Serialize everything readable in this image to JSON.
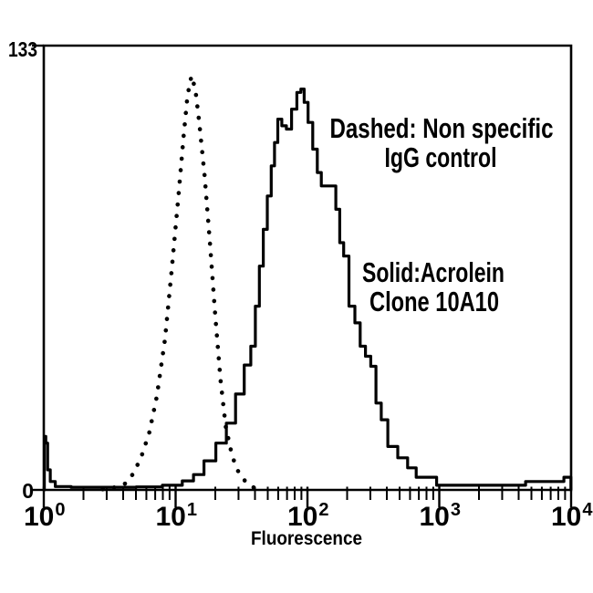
{
  "figure": {
    "background": "#ffffff",
    "ink_color": "#000000"
  },
  "chart_data": {
    "type": "line",
    "subtype": "flow-cytometry-histogram-overlay",
    "title": "",
    "xlabel": "Fluorescence",
    "ylabel": "",
    "x_scale": "log10",
    "xlim": [
      1,
      10000
    ],
    "ylim": [
      0,
      133
    ],
    "grid": false,
    "legend_position": "none",
    "y_tick_labels": [
      "0",
      "133"
    ],
    "x_tick_values": [
      1,
      10,
      100,
      1000,
      10000
    ],
    "x_ticks": [
      {
        "base": "10",
        "exp": "0"
      },
      {
        "base": "10",
        "exp": "1"
      },
      {
        "base": "10",
        "exp": "2"
      },
      {
        "base": "10",
        "exp": "3"
      },
      {
        "base": "10",
        "exp": "4"
      }
    ],
    "series": [
      {
        "name": "Non specific IgG control",
        "line_style": "dotted",
        "color": "#000000",
        "peak": {
          "x": 13.2,
          "y": 124
        },
        "points": [
          [
            2.8,
            0.2
          ],
          [
            3.5,
            0.8
          ],
          [
            4.2,
            2
          ],
          [
            4.8,
            5
          ],
          [
            5.5,
            10
          ],
          [
            6.3,
            17
          ],
          [
            7.2,
            28
          ],
          [
            8.3,
            45
          ],
          [
            9.3,
            65
          ],
          [
            10.5,
            88
          ],
          [
            11.5,
            106
          ],
          [
            12.3,
            118
          ],
          [
            13.2,
            124
          ],
          [
            14.1,
            120
          ],
          [
            15.1,
            110
          ],
          [
            16.6,
            94
          ],
          [
            18.2,
            74
          ],
          [
            20,
            52
          ],
          [
            21.9,
            33
          ],
          [
            24,
            19
          ],
          [
            26.9,
            10
          ],
          [
            30.2,
            5
          ],
          [
            34.7,
            2
          ],
          [
            40,
            0.5
          ],
          [
            43.7,
            0.2
          ]
        ]
      },
      {
        "name": "Acrolein Clone 10A10",
        "line_style": "solid",
        "color": "#000000",
        "peak": {
          "x": 91.2,
          "y": 120
        },
        "points": [
          [
            1,
            0
          ],
          [
            1.02,
            16
          ],
          [
            1.05,
            14
          ],
          [
            1.09,
            6
          ],
          [
            1.15,
            2.5
          ],
          [
            1.3,
            1
          ],
          [
            2,
            0.8
          ],
          [
            4,
            0.8
          ],
          [
            6.3,
            0.9
          ],
          [
            10,
            1.4
          ],
          [
            12.6,
            2.7
          ],
          [
            14.8,
            4.6
          ],
          [
            18.2,
            8.7
          ],
          [
            22.4,
            14
          ],
          [
            26.3,
            20
          ],
          [
            30.9,
            28.7
          ],
          [
            35.5,
            37.4
          ],
          [
            38.9,
            43
          ],
          [
            41.7,
            55
          ],
          [
            44.7,
            67
          ],
          [
            47.9,
            78
          ],
          [
            51.3,
            88
          ],
          [
            55,
            97
          ],
          [
            57.5,
            104
          ],
          [
            61.7,
            111
          ],
          [
            66.1,
            109
          ],
          [
            72.4,
            108
          ],
          [
            79.4,
            114
          ],
          [
            87.1,
            119
          ],
          [
            91.2,
            120
          ],
          [
            97.7,
            116
          ],
          [
            104.7,
            110
          ],
          [
            114.8,
            102
          ],
          [
            123,
            95
          ],
          [
            131.8,
            91
          ],
          [
            158.5,
            91
          ],
          [
            169.8,
            84
          ],
          [
            182,
            74
          ],
          [
            195,
            70
          ],
          [
            218.8,
            55
          ],
          [
            239.9,
            50
          ],
          [
            263,
            43
          ],
          [
            288.4,
            40
          ],
          [
            316.2,
            37
          ],
          [
            346.7,
            26
          ],
          [
            380.2,
            21
          ],
          [
            436.5,
            13
          ],
          [
            537,
            9.6
          ],
          [
            616.6,
            6.6
          ],
          [
            724.4,
            3.8
          ],
          [
            933.3,
            3.8
          ],
          [
            977.2,
            1.4
          ],
          [
            4467,
            1.4
          ],
          [
            4571,
            2.5
          ],
          [
            8710,
            2.5
          ],
          [
            8913,
            3.8
          ],
          [
            9950,
            3.8
          ],
          [
            10000,
            0
          ]
        ]
      }
    ],
    "annotations": [
      {
        "lines": [
          "Dashed: Non specific",
          "IgG control"
        ]
      },
      {
        "lines": [
          "Solid:Acrolein",
          "Clone 10A10"
        ]
      }
    ]
  }
}
